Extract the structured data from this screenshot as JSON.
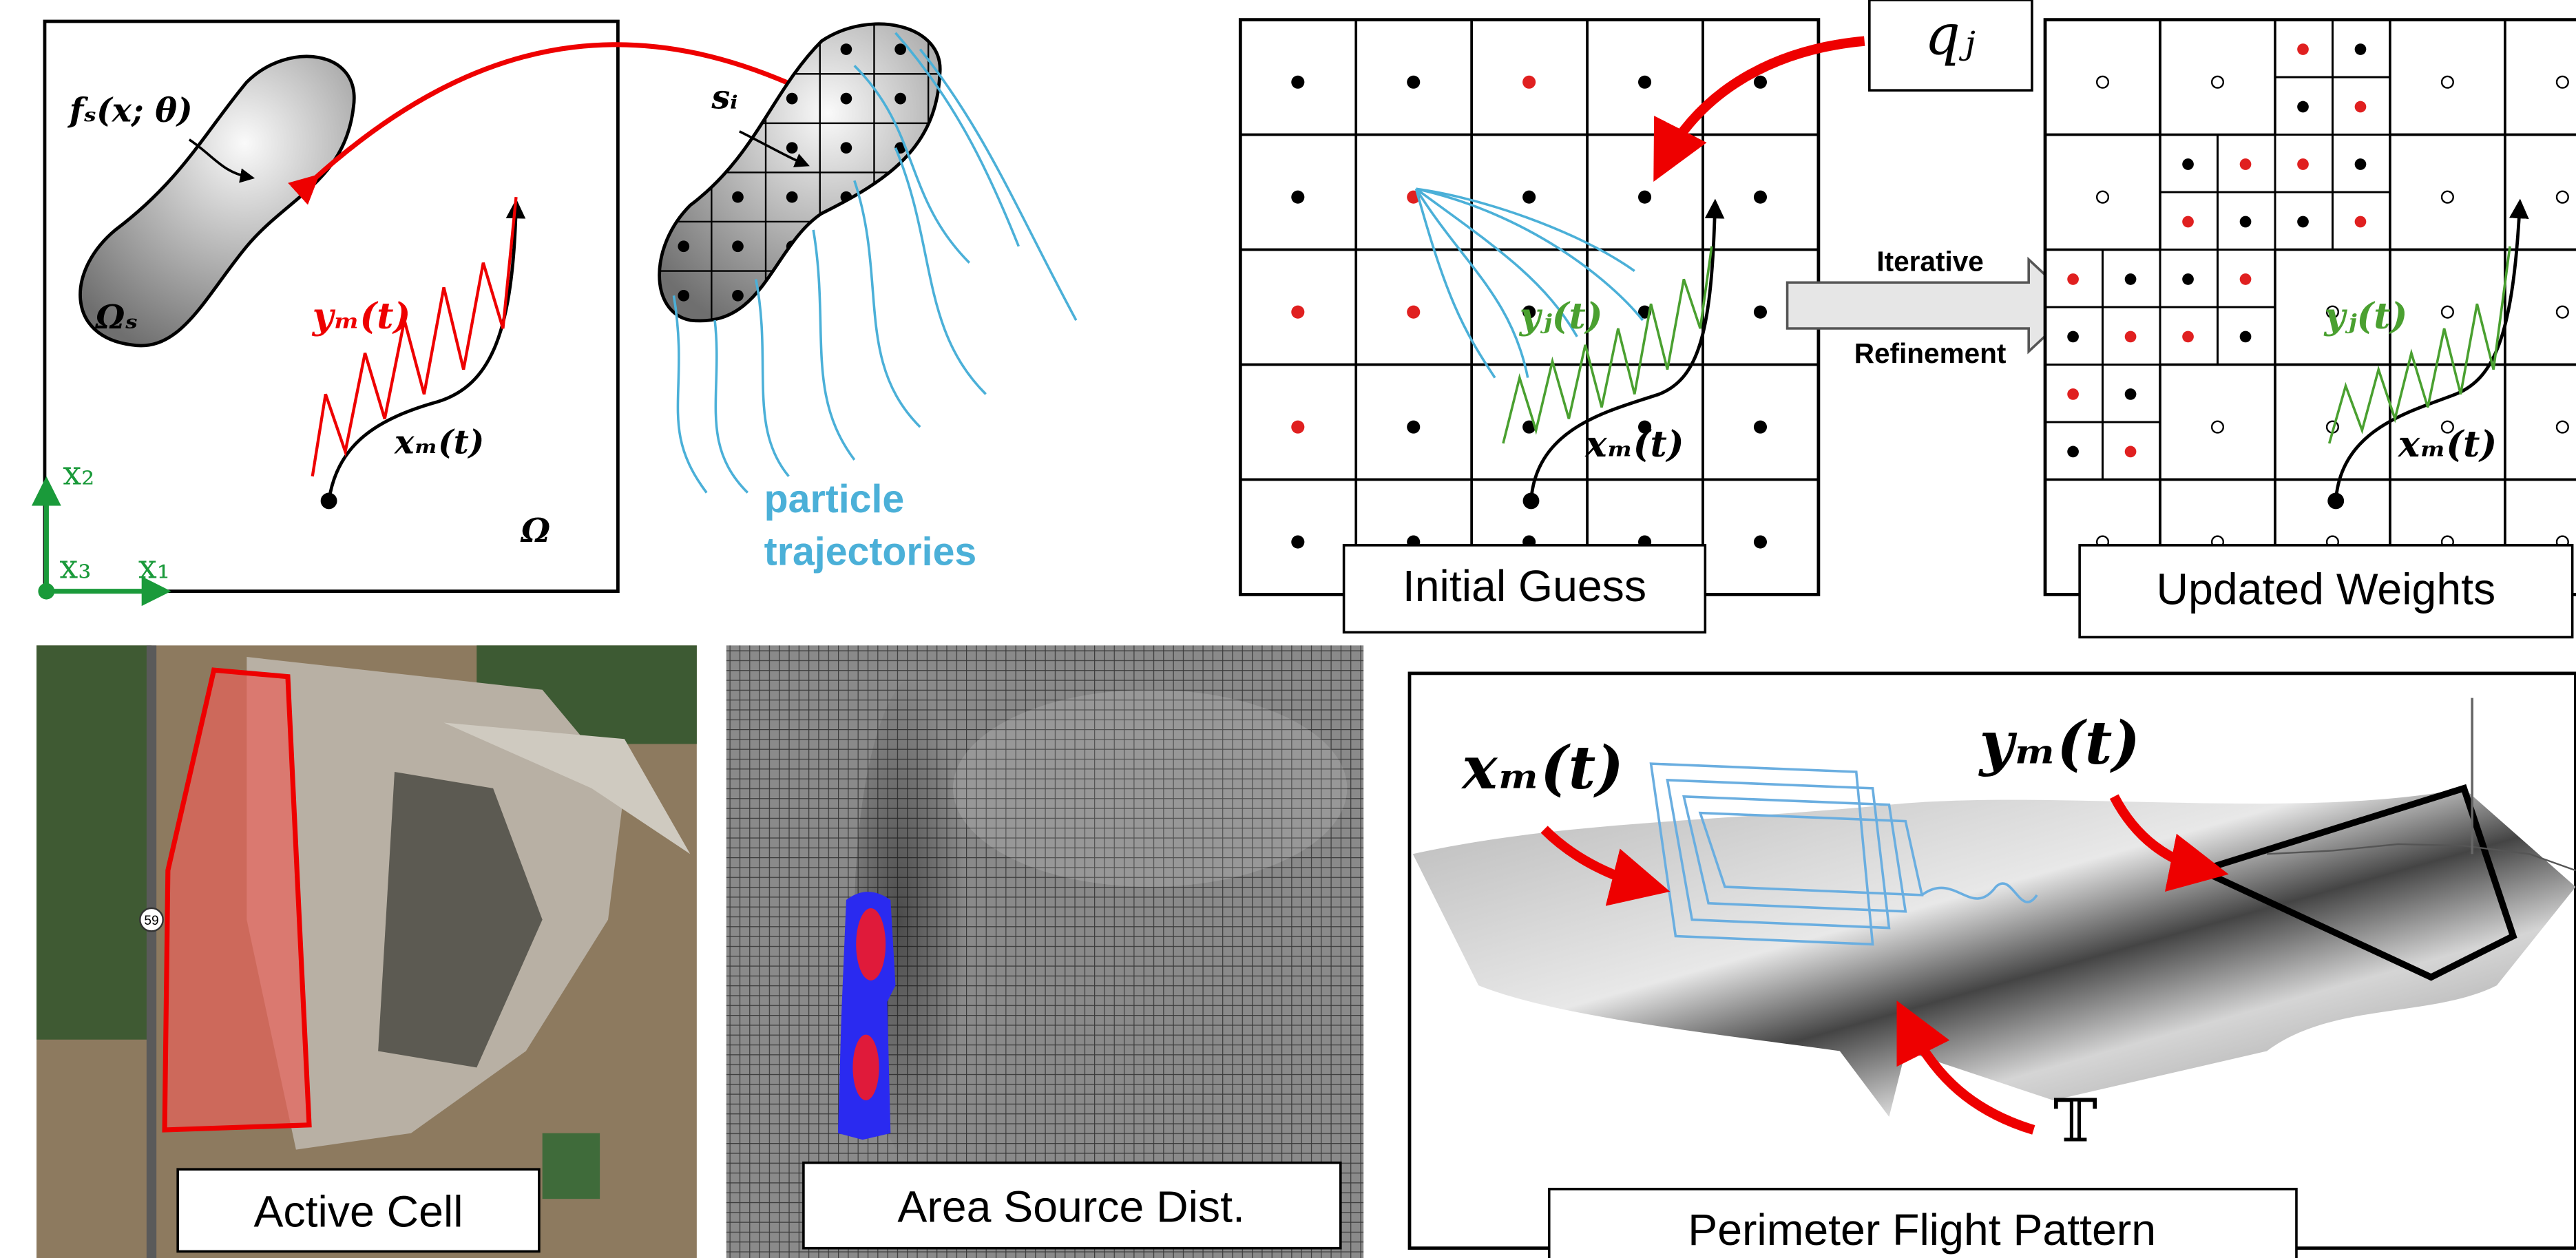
{
  "panels": {
    "domain": {
      "source_fn": "fₛ(x; θ)",
      "source_region": "Ωₛ",
      "measurement": "yₘ(t)",
      "path": "xₘ(t)",
      "domain": "Ω",
      "axis_x2": "x₂",
      "axis_x3": "x₃",
      "axis_x1": "x₁"
    },
    "discretized": {
      "cell": "sᵢ",
      "trajectories_line1": "particle",
      "trajectories_line2": "trajectories"
    },
    "initial": {
      "weight": "qⱼ",
      "measurement": "yⱼ(t)",
      "path": "xₘ(t)",
      "label": "Initial Guess"
    },
    "arrow": {
      "line1": "Iterative",
      "line2": "Refinement"
    },
    "updated": {
      "measurement": "yⱼ(t)",
      "path": "xₘ(t)",
      "label": "Updated Weights"
    },
    "satellite": {
      "road_sign": "59",
      "label": "Active Cell"
    },
    "area": {
      "label": "Area Source Dist."
    },
    "flight": {
      "path": "xₘ(t)",
      "measurement": "yₘ(t)",
      "time": "𝕋",
      "label": "Perimeter Flight Pattern"
    }
  }
}
